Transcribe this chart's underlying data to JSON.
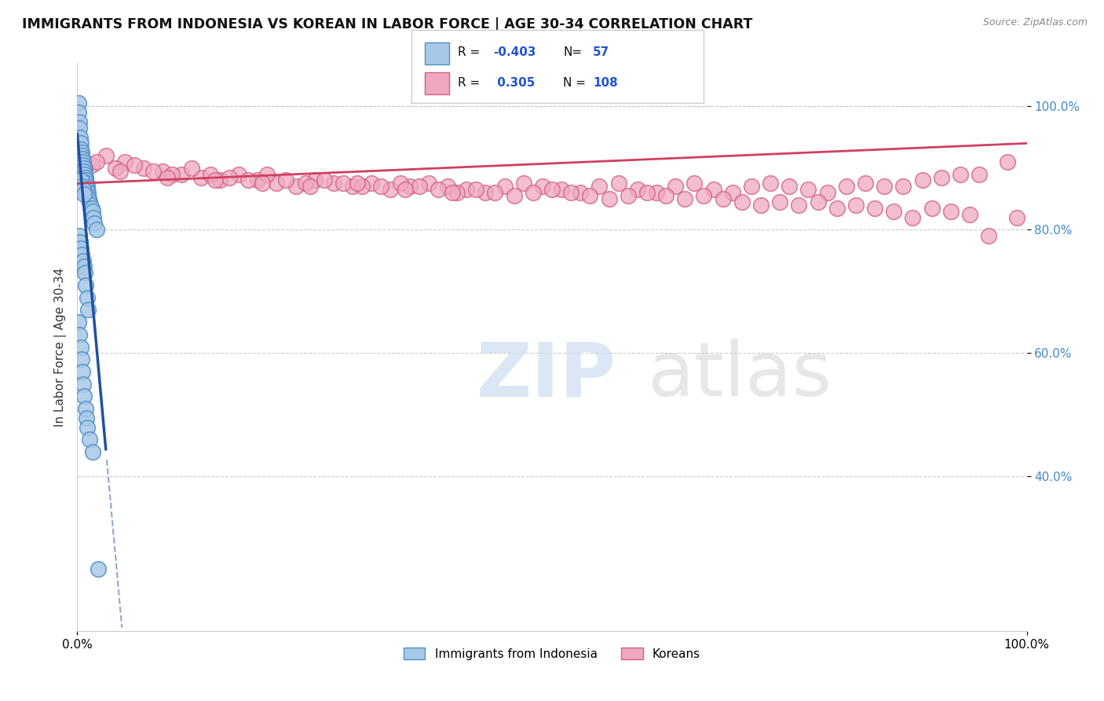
{
  "title": "IMMIGRANTS FROM INDONESIA VS KOREAN IN LABOR FORCE | AGE 30-34 CORRELATION CHART",
  "source": "Source: ZipAtlas.com",
  "ylabel": "In Labor Force | Age 30-34",
  "xlim": [
    0.0,
    100.0
  ],
  "ylim": [
    15.0,
    107.0
  ],
  "yticks": [
    40.0,
    60.0,
    80.0,
    100.0
  ],
  "ytick_labels": [
    "40.0%",
    "60.0%",
    "80.0%",
    "100.0%"
  ],
  "legend_R1": "-0.403",
  "legend_N1": "57",
  "legend_R2": "0.305",
  "legend_N2": "108",
  "legend_label1": "Immigrants from Indonesia",
  "legend_label2": "Koreans",
  "indonesia_scatter_x": [
    0.1,
    0.15,
    0.2,
    0.25,
    0.3,
    0.35,
    0.4,
    0.45,
    0.5,
    0.55,
    0.6,
    0.65,
    0.7,
    0.75,
    0.8,
    0.85,
    0.9,
    0.95,
    1.0,
    1.05,
    1.1,
    1.15,
    1.2,
    1.3,
    1.4,
    1.5,
    1.6,
    1.7,
    1.8,
    2.0,
    0.2,
    0.3,
    0.4,
    0.5,
    0.6,
    0.7,
    0.8,
    0.9,
    1.0,
    1.1,
    0.15,
    0.25,
    0.35,
    0.45,
    0.55,
    0.65,
    0.75,
    0.85,
    0.95,
    1.05,
    1.3,
    1.6,
    2.2,
    0.4,
    0.5,
    0.6,
    0.7
  ],
  "indonesia_scatter_y": [
    100.5,
    99.0,
    97.5,
    96.5,
    95.0,
    94.0,
    93.0,
    92.5,
    92.0,
    91.5,
    91.0,
    90.5,
    90.0,
    89.5,
    89.0,
    88.5,
    88.0,
    87.5,
    87.0,
    86.5,
    86.0,
    85.5,
    85.0,
    84.5,
    84.0,
    83.5,
    83.0,
    82.0,
    81.0,
    80.0,
    79.0,
    78.0,
    77.0,
    76.0,
    75.0,
    74.0,
    73.0,
    71.0,
    69.0,
    67.0,
    65.0,
    63.0,
    61.0,
    59.0,
    57.0,
    55.0,
    53.0,
    51.0,
    49.5,
    48.0,
    46.0,
    44.0,
    25.0,
    88.0,
    87.0,
    86.5,
    85.8
  ],
  "korean_scatter_x": [
    0.3,
    1.5,
    3.0,
    5.0,
    7.0,
    9.0,
    11.0,
    13.0,
    15.0,
    17.0,
    19.0,
    21.0,
    23.0,
    25.0,
    27.0,
    29.0,
    31.0,
    33.0,
    35.0,
    37.0,
    39.0,
    41.0,
    43.0,
    45.0,
    47.0,
    49.0,
    51.0,
    53.0,
    55.0,
    57.0,
    59.0,
    61.0,
    63.0,
    65.0,
    67.0,
    69.0,
    71.0,
    73.0,
    75.0,
    77.0,
    79.0,
    81.0,
    83.0,
    85.0,
    87.0,
    89.0,
    91.0,
    93.0,
    95.0,
    98.0,
    2.0,
    4.0,
    6.0,
    8.0,
    10.0,
    12.0,
    14.0,
    16.0,
    18.0,
    20.0,
    22.0,
    24.0,
    26.0,
    28.0,
    30.0,
    32.0,
    34.0,
    36.0,
    38.0,
    40.0,
    42.0,
    44.0,
    46.0,
    48.0,
    50.0,
    52.0,
    54.0,
    56.0,
    58.0,
    60.0,
    62.0,
    64.0,
    66.0,
    68.0,
    70.0,
    72.0,
    74.0,
    76.0,
    78.0,
    80.0,
    82.0,
    84.0,
    86.0,
    88.0,
    90.0,
    92.0,
    94.0,
    96.0,
    99.0,
    0.8,
    4.5,
    9.5,
    14.5,
    19.5,
    24.5,
    29.5,
    34.5,
    39.5
  ],
  "korean_scatter_y": [
    89.0,
    90.5,
    92.0,
    91.0,
    90.0,
    89.5,
    89.0,
    88.5,
    88.0,
    89.0,
    88.0,
    87.5,
    87.0,
    88.0,
    87.5,
    87.0,
    87.5,
    86.5,
    87.0,
    87.5,
    87.0,
    86.5,
    86.0,
    87.0,
    87.5,
    87.0,
    86.5,
    86.0,
    87.0,
    87.5,
    86.5,
    86.0,
    87.0,
    87.5,
    86.5,
    86.0,
    87.0,
    87.5,
    87.0,
    86.5,
    86.0,
    87.0,
    87.5,
    87.0,
    87.0,
    88.0,
    88.5,
    89.0,
    89.0,
    91.0,
    91.0,
    90.0,
    90.5,
    89.5,
    89.0,
    90.0,
    89.0,
    88.5,
    88.0,
    89.0,
    88.0,
    87.5,
    88.0,
    87.5,
    87.0,
    87.0,
    87.5,
    87.0,
    86.5,
    86.0,
    86.5,
    86.0,
    85.5,
    86.0,
    86.5,
    86.0,
    85.5,
    85.0,
    85.5,
    86.0,
    85.5,
    85.0,
    85.5,
    85.0,
    84.5,
    84.0,
    84.5,
    84.0,
    84.5,
    83.5,
    84.0,
    83.5,
    83.0,
    82.0,
    83.5,
    83.0,
    82.5,
    79.0,
    82.0,
    90.0,
    89.5,
    88.5,
    88.0,
    87.5,
    87.0,
    87.5,
    86.5,
    86.0
  ],
  "indonesia_color_edge": "#5090c8",
  "indonesia_color_fill": "#a8c8e8",
  "korean_color_edge": "#d06080",
  "korean_color_fill": "#f0a8c0",
  "trend_indonesia_color": "#2050a0",
  "trend_korean_color": "#d04060",
  "background_color": "#ffffff",
  "ytick_color": "#4488cc",
  "grid_color": "#cccccc"
}
